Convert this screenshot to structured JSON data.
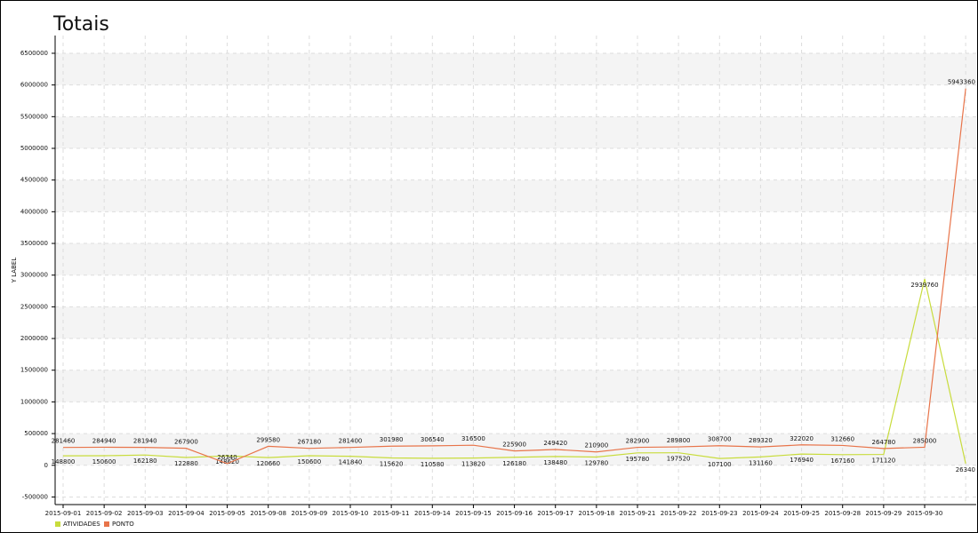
{
  "chart_data": {
    "type": "line",
    "title": "Totais",
    "y_label": "Y LABEL",
    "categories": [
      "2015-09-01",
      "2015-09-02",
      "2015-09-03",
      "2015-09-04",
      "2015-09-05",
      "2015-09-08",
      "2015-09-09",
      "2015-09-10",
      "2015-09-11",
      "2015-09-14",
      "2015-09-15",
      "2015-09-16",
      "2015-09-17",
      "2015-09-18",
      "2015-09-21",
      "2015-09-22",
      "2015-09-23",
      "2015-09-24",
      "2015-09-25",
      "2015-09-28",
      "2015-09-29",
      "2015-09-30",
      null
    ],
    "series": [
      {
        "name": "ATIVIDADES",
        "color": "#c8dc3c",
        "values": [
          148800,
          150600,
          162180,
          122880,
          148620,
          120660,
          150600,
          141840,
          115620,
          110580,
          113820,
          126180,
          138480,
          129780,
          195780,
          197520,
          107100,
          131160,
          176940,
          167160,
          171120,
          2939760,
          26340
        ]
      },
      {
        "name": "PONTO",
        "color": "#e8744a",
        "values": [
          281460,
          284940,
          281940,
          267900,
          26340,
          299580,
          267180,
          281400,
          301980,
          306540,
          316500,
          225900,
          249420,
          210900,
          282900,
          289800,
          308700,
          289320,
          322020,
          312660,
          264780,
          285000,
          5943360
        ]
      }
    ],
    "ylim": [
      -620000,
      6780000
    ],
    "yticks": [
      -500000,
      0,
      500000,
      1000000,
      1500000,
      2000000,
      2500000,
      3000000,
      3500000,
      4000000,
      4500000,
      5000000,
      5500000,
      6000000,
      6500000
    ],
    "grid": true,
    "legend": "bottom-left"
  }
}
